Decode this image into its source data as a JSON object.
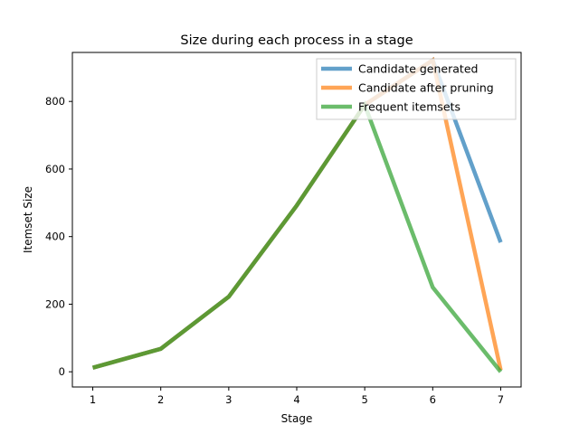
{
  "chart_data": {
    "type": "line",
    "title": "Size during each process in a stage",
    "xlabel": "Stage",
    "ylabel": "Itemset Size",
    "x": [
      1,
      2,
      3,
      4,
      5,
      6,
      7
    ],
    "xlim": [
      0.7,
      7.3
    ],
    "ylim": [
      -45,
      945
    ],
    "xticks": [
      1,
      2,
      3,
      4,
      5,
      6,
      7
    ],
    "yticks": [
      0,
      200,
      400,
      600,
      800
    ],
    "grid": false,
    "legend_position": "top-right",
    "series": [
      {
        "name": "Candidate generated",
        "color": "#1f77b4",
        "values": [
          12,
          68,
          222,
          492,
          790,
          922,
          383
        ]
      },
      {
        "name": "Candidate after pruning",
        "color": "#ff7f0e",
        "values": [
          12,
          68,
          222,
          492,
          790,
          922,
          5
        ]
      },
      {
        "name": "Frequent itemsets",
        "color": "#2ca02c",
        "values": [
          12,
          68,
          222,
          492,
          790,
          250,
          0
        ]
      }
    ]
  }
}
